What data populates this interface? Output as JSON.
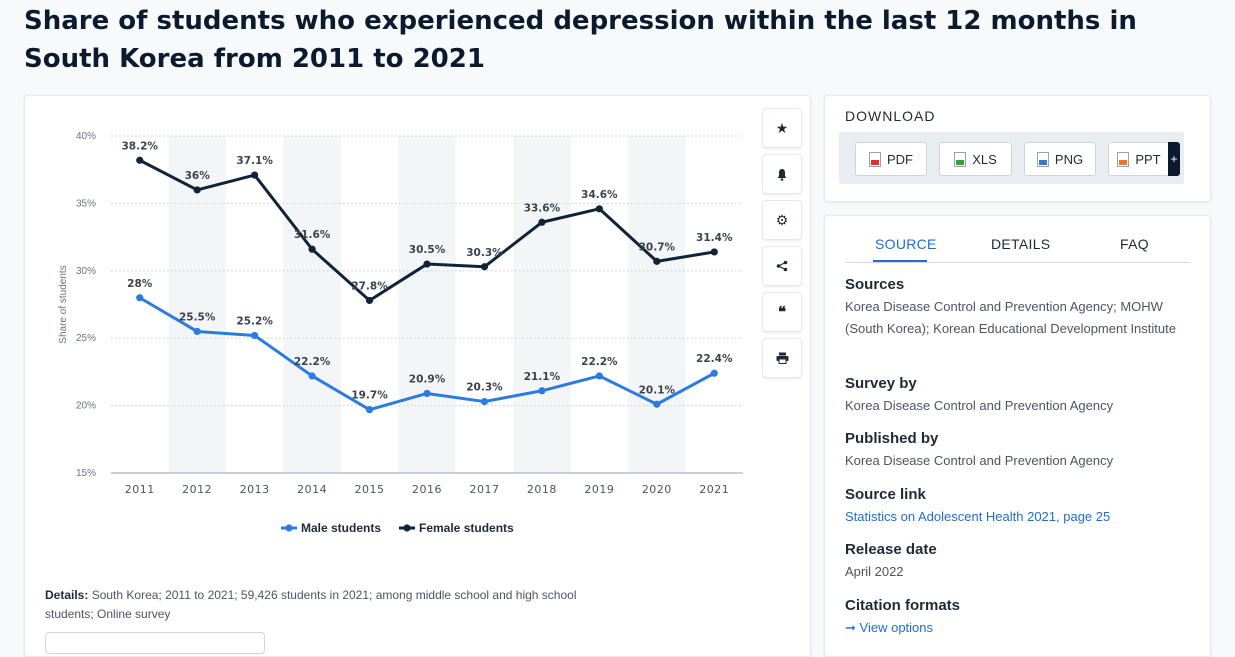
{
  "title": "Share of students who experienced depression within the last 12 months in South Korea from 2011 to 2021",
  "colors": {
    "male": "#2a7ce0",
    "female": "#0f2439",
    "accent": "#1f6dd1"
  },
  "chart_data": {
    "type": "line",
    "ylabel": "Share of students",
    "ylim": [
      15,
      40
    ],
    "yticks": [
      "15%",
      "20%",
      "25%",
      "30%",
      "35%",
      "40%"
    ],
    "ytick_values": [
      15,
      20,
      25,
      30,
      35,
      40
    ],
    "categories": [
      "2011",
      "2012",
      "2013",
      "2014",
      "2015",
      "2016",
      "2017",
      "2018",
      "2019",
      "2020",
      "2021"
    ],
    "series": [
      {
        "name": "Male students",
        "values": [
          28,
          25.5,
          25.2,
          22.2,
          19.7,
          20.9,
          20.3,
          21.1,
          22.2,
          20.1,
          22.4
        ],
        "labels": [
          "28%",
          "25.5%",
          "25.2%",
          "22.2%",
          "19.7%",
          "20.9%",
          "20.3%",
          "21.1%",
          "22.2%",
          "20.1%",
          "22.4%"
        ]
      },
      {
        "name": "Female students",
        "values": [
          38.2,
          36,
          37.1,
          31.6,
          27.8,
          30.5,
          30.3,
          33.6,
          34.6,
          30.7,
          31.4
        ],
        "labels": [
          "38.2%",
          "36%",
          "37.1%",
          "31.6%",
          "27.8%",
          "30.5%",
          "30.3%",
          "33.6%",
          "34.6%",
          "30.7%",
          "31.4%"
        ]
      }
    ],
    "grid": true,
    "legend": "bottom-center"
  },
  "toolbar": {
    "icons": [
      "star-icon",
      "bell-icon",
      "gear-icon",
      "share-icon",
      "quote-icon",
      "print-icon"
    ]
  },
  "details": {
    "label": "Details:",
    "text": "South Korea; 2011 to 2021; 59,426 students in 2021; among middle school and high school students; Online survey"
  },
  "download": {
    "title": "DOWNLOAD",
    "buttons": [
      "PDF",
      "XLS",
      "PNG",
      "PPT"
    ],
    "plus": "+"
  },
  "tabs": {
    "source": "SOURCE",
    "details": "DETAILS",
    "faq": "FAQ"
  },
  "meta": {
    "sources_h": "Sources",
    "sources_v": "Korea Disease Control and Prevention Agency; MOHW (South Korea); Korean Educational Development Institute",
    "survey_h": "Survey by",
    "survey_v": "Korea Disease Control and Prevention Agency",
    "published_h": "Published by",
    "published_v": "Korea Disease Control and Prevention Agency",
    "link_h": "Source link",
    "link_v": "Statistics on Adolescent Health 2021, page 25",
    "release_h": "Release date",
    "release_v": "April 2022",
    "citation_h": "Citation formats",
    "citation_v": "View options"
  }
}
